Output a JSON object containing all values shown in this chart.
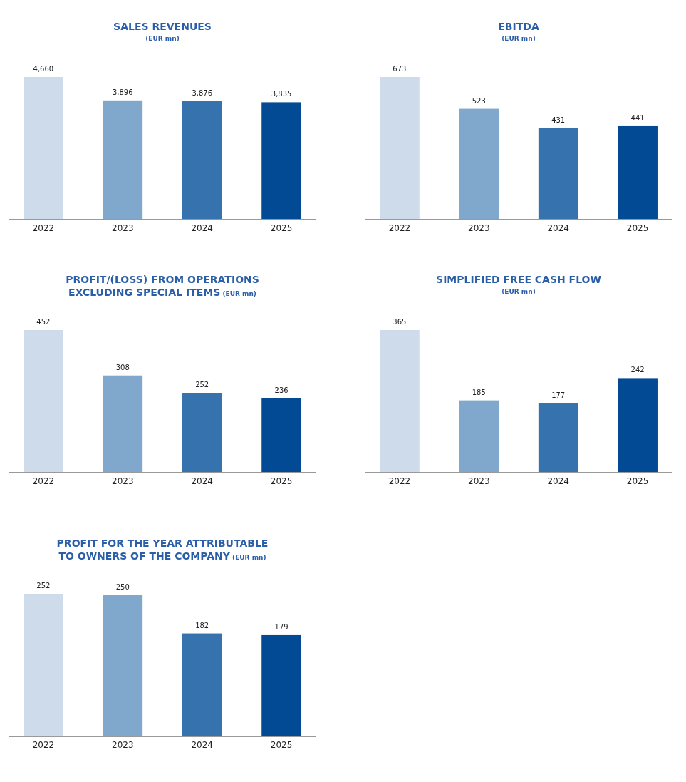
{
  "chart_data": [
    {
      "type": "bar",
      "title": "SALES REVENUES",
      "subtitle": "(EUR mn)",
      "categories": [
        "2022",
        "2023",
        "2024",
        "2025"
      ],
      "values": [
        4660,
        3896,
        3876,
        3835
      ],
      "colors": [
        "#cddbea",
        "#80a7cc",
        "#3673ae",
        "#034a94"
      ],
      "data_labels": true,
      "value_labels": [
        "4,660",
        "3,896",
        "3,876",
        "3,835"
      ]
    },
    {
      "type": "bar",
      "title": "EBITDA",
      "subtitle": "(EUR mn)",
      "categories": [
        "2022",
        "2023",
        "2024",
        "2025"
      ],
      "values": [
        673,
        523,
        431,
        441
      ],
      "colors": [
        "#cddbea",
        "#80a7cc",
        "#3673ae",
        "#034a94"
      ],
      "data_labels": true
    },
    {
      "type": "bar",
      "title": "PROFIT/(LOSS) FROM OPERATIONS EXCLUDING SPECIAL ITEMS",
      "subtitle": "(EUR mn)",
      "categories": [
        "2022",
        "2023",
        "2024",
        "2025"
      ],
      "values": [
        452,
        308,
        252,
        236
      ],
      "colors": [
        "#cddbea",
        "#80a7cc",
        "#3673ae",
        "#034a94"
      ],
      "data_labels": true
    },
    {
      "type": "bar",
      "title": "SIMPLIFIED FREE CASH FLOW",
      "subtitle": "(EUR mn)",
      "categories": [
        "2022",
        "2023",
        "2024",
        "2025"
      ],
      "values": [
        365,
        185,
        177,
        242
      ],
      "colors": [
        "#cddbea",
        "#80a7cc",
        "#3673ae",
        "#034a94"
      ],
      "data_labels": true
    },
    {
      "type": "bar",
      "title": "PROFIT FOR THE YEAR ATTRIBUTABLE TO OWNERS OF THE COMPANY",
      "subtitle": "(EUR mn)",
      "categories": [
        "2022",
        "2023",
        "2024",
        "2025"
      ],
      "values": [
        252,
        250,
        182,
        179
      ],
      "colors": [
        "#cddbea",
        "#80a7cc",
        "#3673ae",
        "#034a94"
      ],
      "data_labels": true
    }
  ]
}
